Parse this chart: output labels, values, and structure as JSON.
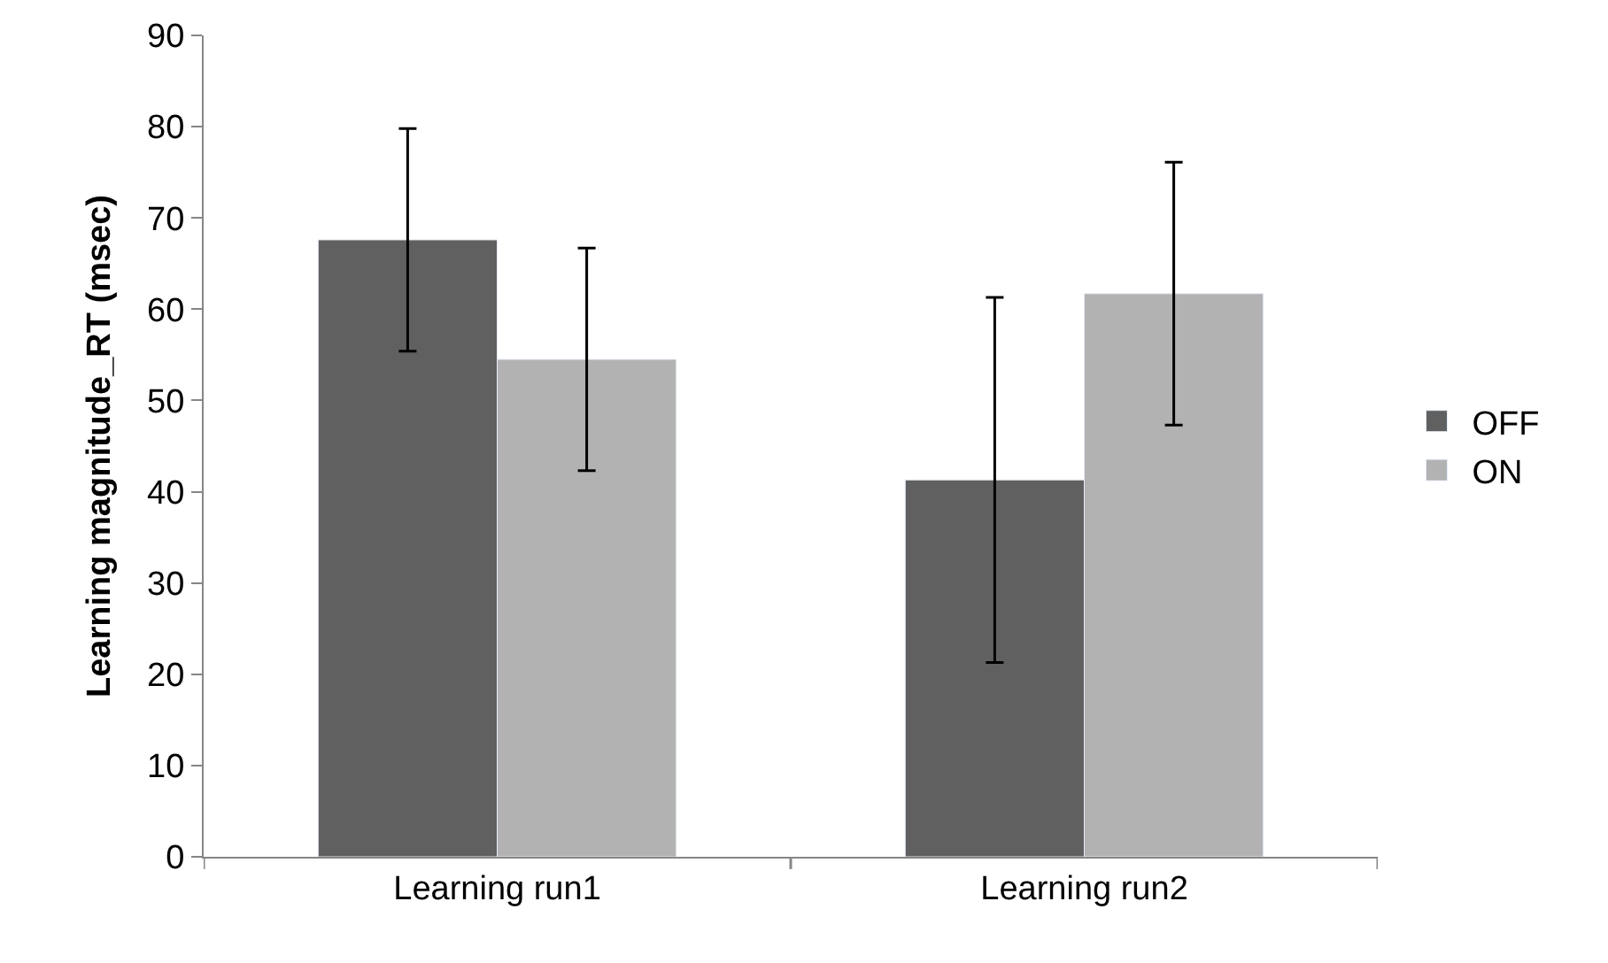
{
  "chart_data": {
    "type": "bar",
    "ylabel": "Learning magnitude_RT (msec)",
    "categories": [
      "Learning run1",
      "Learning run2"
    ],
    "series": [
      {
        "name": "OFF",
        "color": "#606060",
        "values": [
          67.6,
          41.3
        ],
        "errors": [
          12.2,
          20.0
        ]
      },
      {
        "name": "ON",
        "color": "#b2b2b2",
        "values": [
          54.5,
          61.7
        ],
        "errors": [
          12.2,
          14.4
        ]
      }
    ],
    "ylim": [
      0,
      90
    ],
    "yticks": [
      0,
      10,
      20,
      30,
      40,
      50,
      60,
      70,
      80,
      90
    ],
    "legend": "right"
  }
}
